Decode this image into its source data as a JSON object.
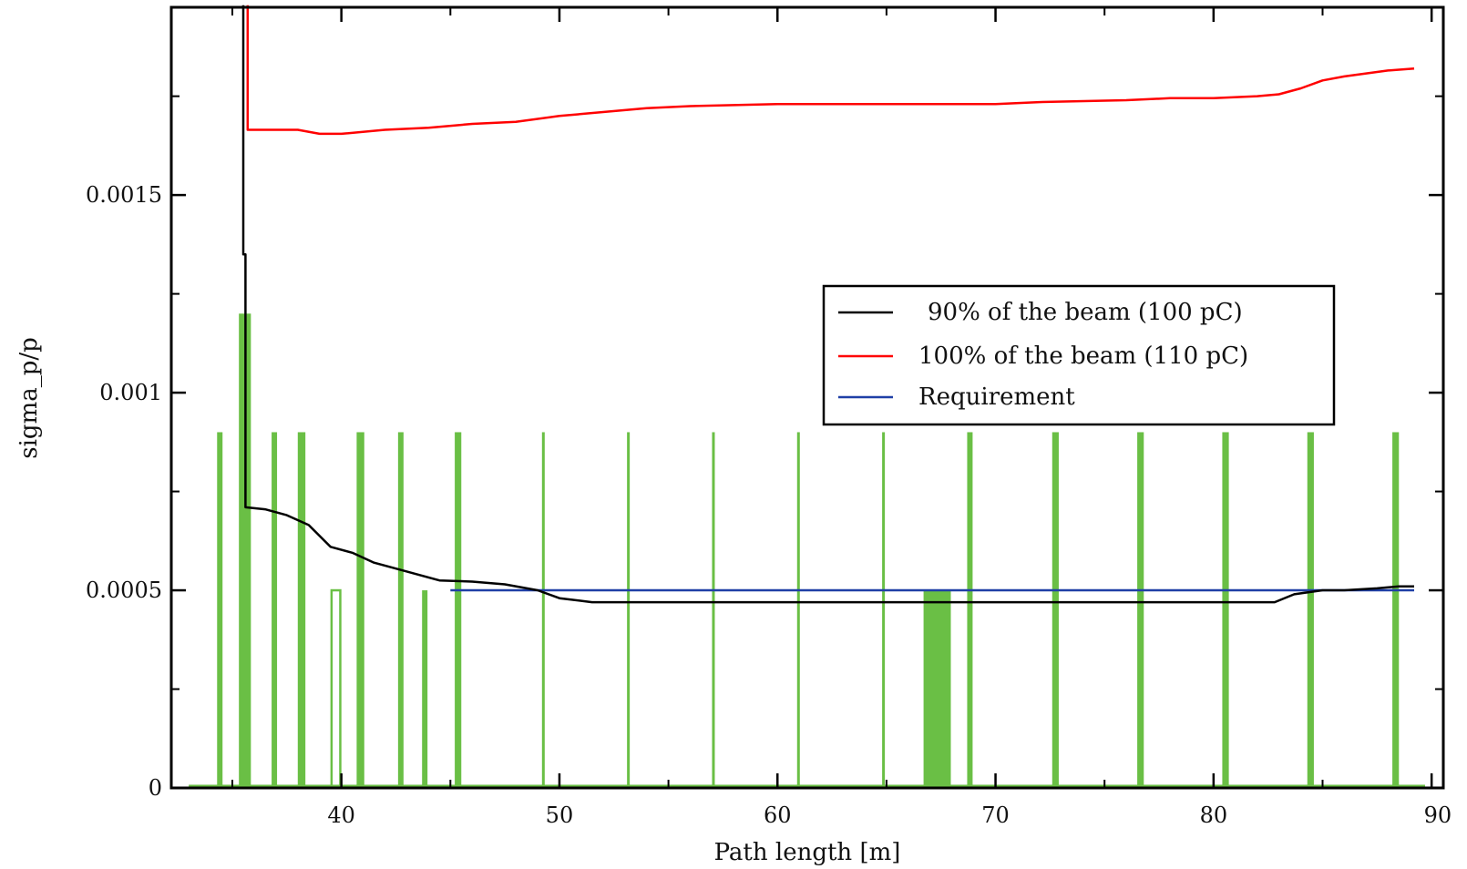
{
  "chart_data": {
    "type": "line",
    "title": "",
    "xlabel": "Path length [m]",
    "ylabel": "sigma_p/p",
    "xlim": [
      32.2,
      90
    ],
    "ylim": [
      0,
      0.001975
    ],
    "x_ticks": [
      {
        "value": 40,
        "label": "40"
      },
      {
        "value": 50,
        "label": "50"
      },
      {
        "value": 60,
        "label": "60"
      },
      {
        "value": 70,
        "label": "70"
      },
      {
        "value": 80,
        "label": "80"
      },
      {
        "value": 90,
        "label": "90"
      }
    ],
    "y_ticks": [
      {
        "value": 0,
        "label": "0"
      },
      {
        "value": 0.0005,
        "label": "0.0005"
      },
      {
        "value": 0.001,
        "label": "0.001"
      },
      {
        "value": 0.0015,
        "label": "0.0015"
      }
    ],
    "x_minor_ticks": [
      35,
      45,
      55,
      65,
      75,
      85
    ],
    "y_minor_ticks": [
      0.00025,
      0.00075,
      0.00125,
      0.00175
    ],
    "grid": false,
    "legend_position": "right",
    "series": [
      {
        "name": "90% of the beam (100 pC)",
        "color": "#000000",
        "points": [
          [
            35.5,
            0.00198
          ],
          [
            35.5,
            0.00135
          ],
          [
            35.6,
            0.00135
          ],
          [
            35.6,
            0.00071
          ],
          [
            36.5,
            0.000705
          ],
          [
            37.5,
            0.00069
          ],
          [
            38.5,
            0.000665
          ],
          [
            39.5,
            0.00061
          ],
          [
            40.5,
            0.000595
          ],
          [
            41.5,
            0.00057
          ],
          [
            42.5,
            0.000555
          ],
          [
            43.5,
            0.00054
          ],
          [
            44.5,
            0.000525
          ],
          [
            46,
            0.000522
          ],
          [
            47.5,
            0.000515
          ],
          [
            49,
            0.0005
          ],
          [
            50,
            0.00048
          ],
          [
            51.5,
            0.00047
          ],
          [
            60,
            0.00047
          ],
          [
            70,
            0.00047
          ],
          [
            80,
            0.00047
          ],
          [
            82.8,
            0.00047
          ],
          [
            83.7,
            0.00049
          ],
          [
            85,
            0.0005
          ],
          [
            86,
            0.0005
          ],
          [
            87.5,
            0.000505
          ],
          [
            88.5,
            0.00051
          ],
          [
            89.2,
            0.00051
          ]
        ]
      },
      {
        "name": "100% of the beam (110 pC)",
        "color": "#ff0000",
        "points": [
          [
            35.7,
            0.00198
          ],
          [
            35.7,
            0.001665
          ],
          [
            38,
            0.001665
          ],
          [
            39,
            0.001655
          ],
          [
            40,
            0.001655
          ],
          [
            42,
            0.001665
          ],
          [
            44,
            0.00167
          ],
          [
            46,
            0.00168
          ],
          [
            48,
            0.001685
          ],
          [
            50,
            0.0017
          ],
          [
            52,
            0.00171
          ],
          [
            54,
            0.00172
          ],
          [
            56,
            0.001725
          ],
          [
            60,
            0.00173
          ],
          [
            65,
            0.00173
          ],
          [
            70,
            0.00173
          ],
          [
            72,
            0.001735
          ],
          [
            76,
            0.00174
          ],
          [
            78,
            0.001745
          ],
          [
            80,
            0.001745
          ],
          [
            82,
            0.00175
          ],
          [
            83,
            0.001755
          ],
          [
            84,
            0.00177
          ],
          [
            85,
            0.00179
          ],
          [
            86,
            0.0018
          ],
          [
            88,
            0.001815
          ],
          [
            89.2,
            0.00182
          ]
        ]
      },
      {
        "name": "Requirement",
        "color": "#1f3fa6",
        "points": [
          [
            45,
            0.0005
          ],
          [
            89.2,
            0.0005
          ]
        ]
      }
    ],
    "elements": {
      "name": "",
      "color": "#6abf45",
      "bars": [
        {
          "x": 34.3,
          "width": 0.25,
          "height": 0.0009
        },
        {
          "x": 35.3,
          "width": 0.55,
          "height": 0.0012
        },
        {
          "x": 36.8,
          "width": 0.25,
          "height": 0.0009
        },
        {
          "x": 38.0,
          "width": 0.35,
          "height": 0.0009
        },
        {
          "x": 40.7,
          "width": 0.35,
          "height": 0.0009
        },
        {
          "x": 42.6,
          "width": 0.25,
          "height": 0.0009
        },
        {
          "x": 43.7,
          "width": 0.25,
          "height": 0.0005
        },
        {
          "x": 45.2,
          "width": 0.3,
          "height": 0.0009
        },
        {
          "x": 49.2,
          "width": 0.12,
          "height": 0.0009
        },
        {
          "x": 53.1,
          "width": 0.12,
          "height": 0.0009
        },
        {
          "x": 57.0,
          "width": 0.12,
          "height": 0.0009
        },
        {
          "x": 60.9,
          "width": 0.12,
          "height": 0.0009
        },
        {
          "x": 64.8,
          "width": 0.12,
          "height": 0.0009
        },
        {
          "x": 66.7,
          "width": 1.25,
          "height": 0.0005
        },
        {
          "x": 68.7,
          "width": 0.25,
          "height": 0.0009
        },
        {
          "x": 72.6,
          "width": 0.3,
          "height": 0.0009
        },
        {
          "x": 76.5,
          "width": 0.3,
          "height": 0.0009
        },
        {
          "x": 80.4,
          "width": 0.3,
          "height": 0.0009
        },
        {
          "x": 84.3,
          "width": 0.3,
          "height": 0.0009
        },
        {
          "x": 88.2,
          "width": 0.3,
          "height": 0.0009
        }
      ],
      "outline_bars": [
        {
          "x": 39.55,
          "width": 0.4,
          "height": 0.0005
        }
      ],
      "baseline": [
        33,
        89.7
      ]
    }
  }
}
